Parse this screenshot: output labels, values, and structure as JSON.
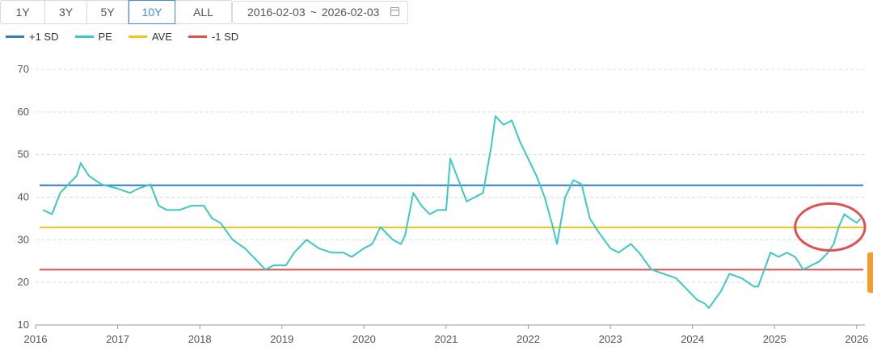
{
  "toolbar": {
    "ranges": [
      "1Y",
      "3Y",
      "5Y",
      "10Y",
      "ALL"
    ],
    "active_range": "10Y",
    "start_date": "2016-02-03",
    "separator": "~",
    "end_date": "2026-02-03",
    "calendar_icon": "calendar-icon"
  },
  "colors": {
    "plus_sd": "#2f7fc1",
    "pe": "#3cc8c8",
    "ave": "#f5c518",
    "minus_sd": "#e0504f",
    "highlight": "#e0504f",
    "accent": "#3a8ee6"
  },
  "chart_data": {
    "type": "line",
    "title": "",
    "xlabel": "",
    "ylabel": "",
    "ylim": [
      10,
      70
    ],
    "xlim": [
      2016.0,
      2026.1
    ],
    "y_ticks": [
      10,
      20,
      30,
      40,
      50,
      60,
      70
    ],
    "x_ticks": [
      "2016",
      "2017",
      "2018",
      "2019",
      "2020",
      "2021",
      "2022",
      "2023",
      "2024",
      "2025",
      "2026"
    ],
    "grid": "horizontal",
    "legend_position": "top-left",
    "series": [
      {
        "name": "+1 SD",
        "type": "hline",
        "value": 42.8
      },
      {
        "name": "PE",
        "x": [
          2016.09,
          2016.2,
          2016.3,
          2016.4,
          2016.5,
          2016.55,
          2016.65,
          2016.8,
          2017.0,
          2017.15,
          2017.25,
          2017.4,
          2017.5,
          2017.6,
          2017.75,
          2017.9,
          2018.05,
          2018.15,
          2018.25,
          2018.4,
          2018.55,
          2018.7,
          2018.8,
          2018.9,
          2019.05,
          2019.15,
          2019.3,
          2019.45,
          2019.6,
          2019.75,
          2019.85,
          2020.0,
          2020.1,
          2020.2,
          2020.35,
          2020.45,
          2020.5,
          2020.6,
          2020.7,
          2020.8,
          2020.9,
          2021.0,
          2021.05,
          2021.15,
          2021.25,
          2021.35,
          2021.45,
          2021.55,
          2021.6,
          2021.7,
          2021.8,
          2021.9,
          2022.0,
          2022.1,
          2022.2,
          2022.3,
          2022.35,
          2022.45,
          2022.55,
          2022.65,
          2022.75,
          2022.85,
          2023.0,
          2023.1,
          2023.25,
          2023.35,
          2023.5,
          2023.65,
          2023.8,
          2023.95,
          2024.05,
          2024.15,
          2024.2,
          2024.35,
          2024.45,
          2024.6,
          2024.75,
          2024.8,
          2024.95,
          2025.05,
          2025.15,
          2025.25,
          2025.35,
          2025.45,
          2025.55,
          2025.65,
          2025.72,
          2025.78,
          2025.85,
          2025.92,
          2026.0,
          2026.05
        ],
        "y": [
          37,
          36,
          41,
          43,
          45,
          48,
          45,
          43,
          42,
          41,
          42,
          43,
          38,
          37,
          37,
          38,
          38,
          35,
          34,
          30,
          28,
          25,
          23,
          24,
          24,
          27,
          30,
          28,
          27,
          27,
          26,
          28,
          29,
          33,
          30,
          29,
          31,
          41,
          38,
          36,
          37,
          37,
          49,
          44,
          39,
          40,
          41,
          52,
          59,
          57,
          58,
          53,
          49,
          45,
          40,
          33,
          29,
          40,
          44,
          43,
          35,
          32,
          28,
          27,
          29,
          27,
          23,
          22,
          21,
          18,
          16,
          15,
          14,
          18,
          22,
          21,
          19,
          19,
          27,
          26,
          27,
          26,
          23,
          24,
          25,
          27,
          29,
          33,
          36,
          35,
          34,
          35
        ]
      },
      {
        "name": "AVE",
        "type": "hline",
        "value": 32.9
      },
      {
        "name": "-1 SD",
        "type": "hline",
        "value": 23.0
      }
    ],
    "annotations": [
      {
        "type": "ellipse",
        "note": "highlight",
        "x_range": [
          2025.25,
          2026.1
        ],
        "y_range": [
          27.5,
          38.5
        ]
      }
    ]
  }
}
